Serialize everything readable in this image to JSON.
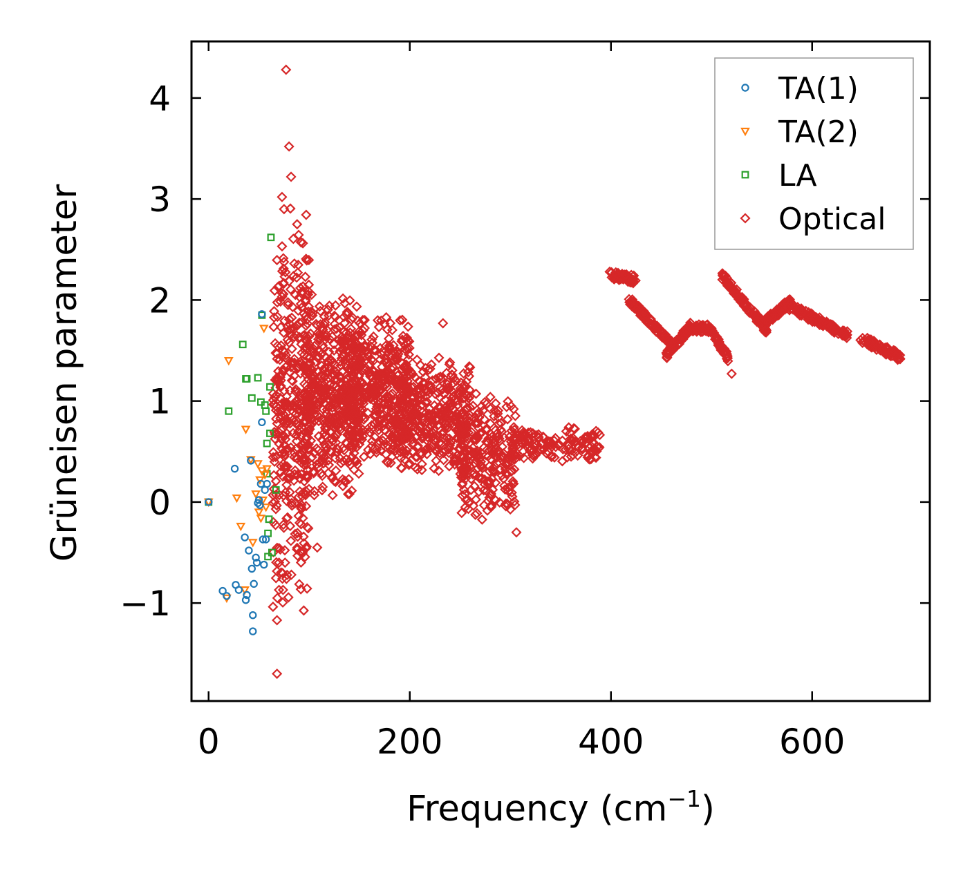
{
  "chart_data": {
    "type": "scatter",
    "xlabel_main": "Frequency (cm",
    "xlabel_sup": "−1",
    "xlabel_close": ")",
    "ylabel": "Grüneisen parameter",
    "xlim": [
      -17,
      717
    ],
    "ylim": [
      -1.97,
      4.56
    ],
    "x_ticks": [
      0,
      200,
      400,
      600
    ],
    "x_tick_labels": [
      "0",
      "200",
      "400",
      "600"
    ],
    "y_ticks": [
      -1,
      0,
      1,
      2,
      3,
      4
    ],
    "y_tick_labels": [
      "−1",
      "0",
      "1",
      "2",
      "3",
      "4"
    ],
    "grid": false,
    "legend_position": "top-right",
    "series": [
      {
        "name": "TA(1)",
        "marker": "circle",
        "color": "#1f77b4",
        "points": [
          [
            0,
            0
          ],
          [
            14,
            -0.88
          ],
          [
            18,
            -0.93
          ],
          [
            26,
            0.33
          ],
          [
            27,
            -0.82
          ],
          [
            30,
            -0.87
          ],
          [
            36,
            -0.35
          ],
          [
            37,
            -0.97
          ],
          [
            38,
            -0.92
          ],
          [
            40,
            -0.48
          ],
          [
            42,
            0.41
          ],
          [
            43,
            -0.66
          ],
          [
            44,
            -1.12
          ],
          [
            44,
            -1.28
          ],
          [
            45,
            -0.81
          ],
          [
            47,
            -0.55
          ],
          [
            48,
            -0.6
          ],
          [
            49,
            -0.01
          ],
          [
            50,
            0.02
          ],
          [
            51,
            -0.03
          ],
          [
            52,
            0.18
          ],
          [
            53,
            0.79
          ],
          [
            53,
            1.86
          ],
          [
            54,
            -0.37
          ],
          [
            55,
            -0.62
          ],
          [
            56,
            0.12
          ],
          [
            57,
            -0.37
          ],
          [
            58,
            0.18
          ]
        ]
      },
      {
        "name": "TA(2)",
        "marker": "triangle-down",
        "color": "#ff7f0e",
        "points": [
          [
            0,
            0
          ],
          [
            18,
            -0.95
          ],
          [
            20,
            1.4
          ],
          [
            28,
            0.04
          ],
          [
            32,
            -0.24
          ],
          [
            36,
            -0.87
          ],
          [
            37,
            0.72
          ],
          [
            42,
            0.42
          ],
          [
            44,
            -0.4
          ],
          [
            47,
            0.08
          ],
          [
            49,
            0.38
          ],
          [
            50,
            -0.1
          ],
          [
            51,
            0.22
          ],
          [
            52,
            -0.16
          ],
          [
            53,
            0.31
          ],
          [
            54,
            0.02
          ],
          [
            55,
            1.72
          ],
          [
            56,
            0.27
          ],
          [
            57,
            -0.05
          ],
          [
            58,
            0.33
          ]
        ]
      },
      {
        "name": "LA",
        "marker": "square",
        "color": "#2ca02c",
        "points": [
          [
            0,
            0
          ],
          [
            20,
            0.9
          ],
          [
            34,
            1.56
          ],
          [
            37,
            1.22
          ],
          [
            38,
            1.22
          ],
          [
            43,
            1.03
          ],
          [
            49,
            1.23
          ],
          [
            52,
            0.99
          ],
          [
            53,
            1.85
          ],
          [
            56,
            0.96
          ],
          [
            57,
            0.9
          ],
          [
            58,
            0.58
          ],
          [
            59,
            -0.54
          ],
          [
            60,
            -0.17
          ],
          [
            61,
            0.68
          ],
          [
            61,
            1.14
          ],
          [
            62,
            2.62
          ],
          [
            63,
            -0.5
          ],
          [
            67,
            0.12
          ],
          [
            58,
            0.28
          ],
          [
            59,
            -0.31
          ]
        ]
      },
      {
        "name": "Optical",
        "marker": "diamond",
        "color": "#d62728",
        "points": [
          [
            68,
            -1.7
          ],
          [
            68,
            -1.17
          ],
          [
            70,
            -0.87
          ],
          [
            74,
            -0.87
          ],
          [
            77,
            4.28
          ],
          [
            80,
            3.52
          ],
          [
            82,
            3.22
          ],
          [
            73,
            3.02
          ],
          [
            75,
            2.9
          ],
          [
            88,
            2.75
          ],
          [
            92,
            2.57
          ],
          [
            70,
            -0.6
          ],
          [
            76,
            -0.6
          ],
          [
            88,
            -0.47
          ],
          [
            108,
            -0.45
          ],
          [
            140,
            0.08
          ],
          [
            306,
            -0.3
          ],
          [
            233,
            1.77
          ],
          [
            363,
            0.73
          ],
          [
            520,
            1.27
          ]
        ],
        "clusters": [
          {
            "x_range": [
              64,
              100
            ],
            "y_range": [
              -1.2,
              3.0
            ],
            "n": 380
          },
          {
            "x_range": [
              95,
              150
            ],
            "y_range": [
              0.0,
              2.1
            ],
            "n": 520
          },
          {
            "x_range": [
              140,
              200
            ],
            "y_range": [
              0.3,
              1.9
            ],
            "n": 420
          },
          {
            "x_range": [
              190,
              260
            ],
            "y_range": [
              0.2,
              1.5
            ],
            "n": 380
          },
          {
            "x_range": [
              250,
              305
            ],
            "y_range": [
              -0.25,
              1.1
            ],
            "n": 260
          },
          {
            "x_range": [
              300,
              390
            ],
            "y_range": [
              0.4,
              0.75
            ],
            "n": 140
          }
        ],
        "bands": [
          {
            "x": [
              398,
              425
            ],
            "y": [
              2.25,
              2.2
            ],
            "n": 60
          },
          {
            "x": [
              418,
              462
            ],
            "y": [
              2.0,
              1.55
            ],
            "n": 110
          },
          {
            "x": [
              455,
              480
            ],
            "y": [
              1.45,
              1.75
            ],
            "n": 60
          },
          {
            "x": [
              478,
              500
            ],
            "y": [
              1.72,
              1.72
            ],
            "n": 50
          },
          {
            "x": [
              500,
              518
            ],
            "y": [
              1.7,
              1.4
            ],
            "n": 40
          },
          {
            "x": [
              510,
              555
            ],
            "y": [
              2.25,
              1.7
            ],
            "n": 110
          },
          {
            "x": [
              550,
              580
            ],
            "y": [
              1.75,
              2.0
            ],
            "n": 70
          },
          {
            "x": [
              575,
              635
            ],
            "y": [
              1.95,
              1.65
            ],
            "n": 140
          },
          {
            "x": [
              648,
              688
            ],
            "y": [
              1.62,
              1.43
            ],
            "n": 90
          }
        ]
      }
    ]
  }
}
